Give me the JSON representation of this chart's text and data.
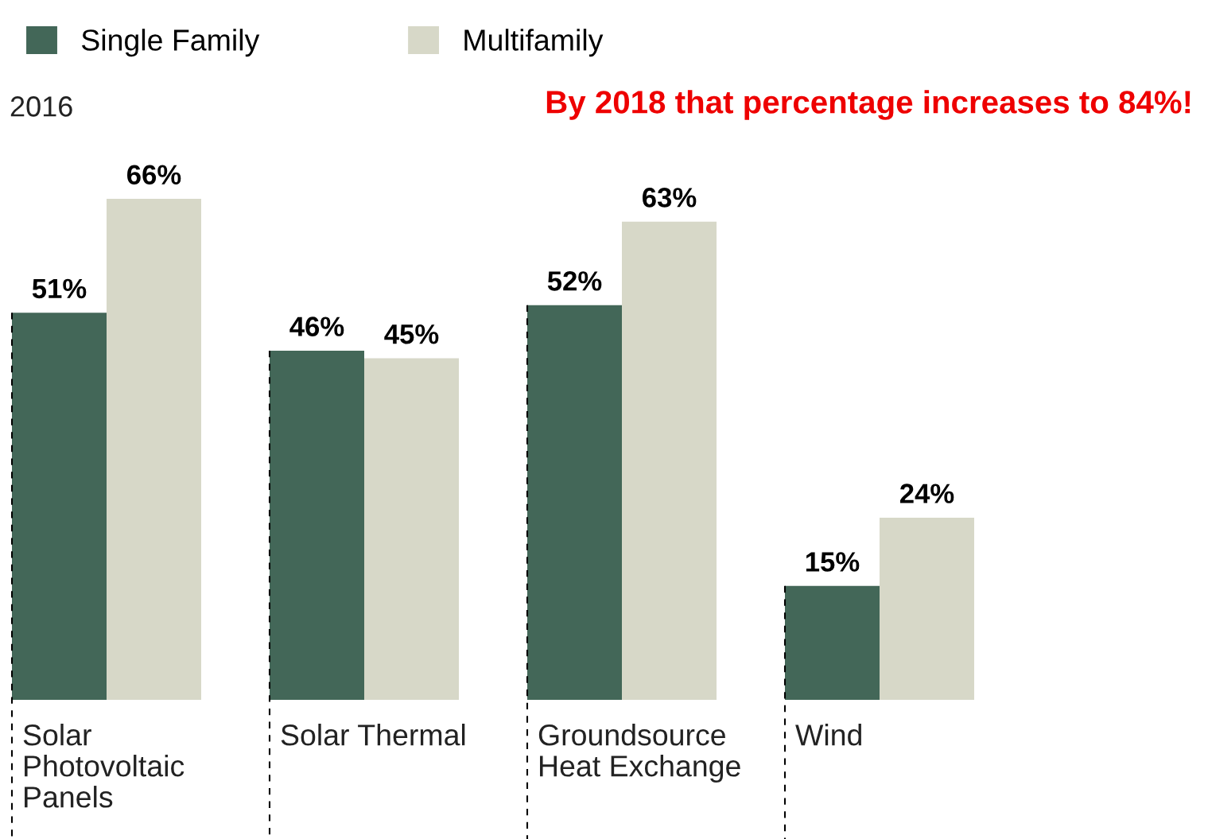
{
  "chart_data": {
    "type": "bar",
    "subtitle": "2016",
    "annotations": [
      "By 2018 that percentage increases to 84%!"
    ],
    "categories": [
      "Solar\nPhotovoltaic\nPanels",
      "Solar Thermal",
      "Groundsource\nHeat Exchange",
      "Wind"
    ],
    "series": [
      {
        "name": "Single Family",
        "color": "#436758",
        "values": [
          51,
          46,
          52,
          15
        ],
        "value_labels": [
          "51%",
          "46%",
          "52%",
          "15%"
        ]
      },
      {
        "name": "Multifamily",
        "color": "#d7d8c8",
        "values": [
          66,
          45,
          63,
          24
        ],
        "value_labels": [
          "66%",
          "45%",
          "63%",
          "24%"
        ]
      }
    ],
    "legend": "top left"
  }
}
